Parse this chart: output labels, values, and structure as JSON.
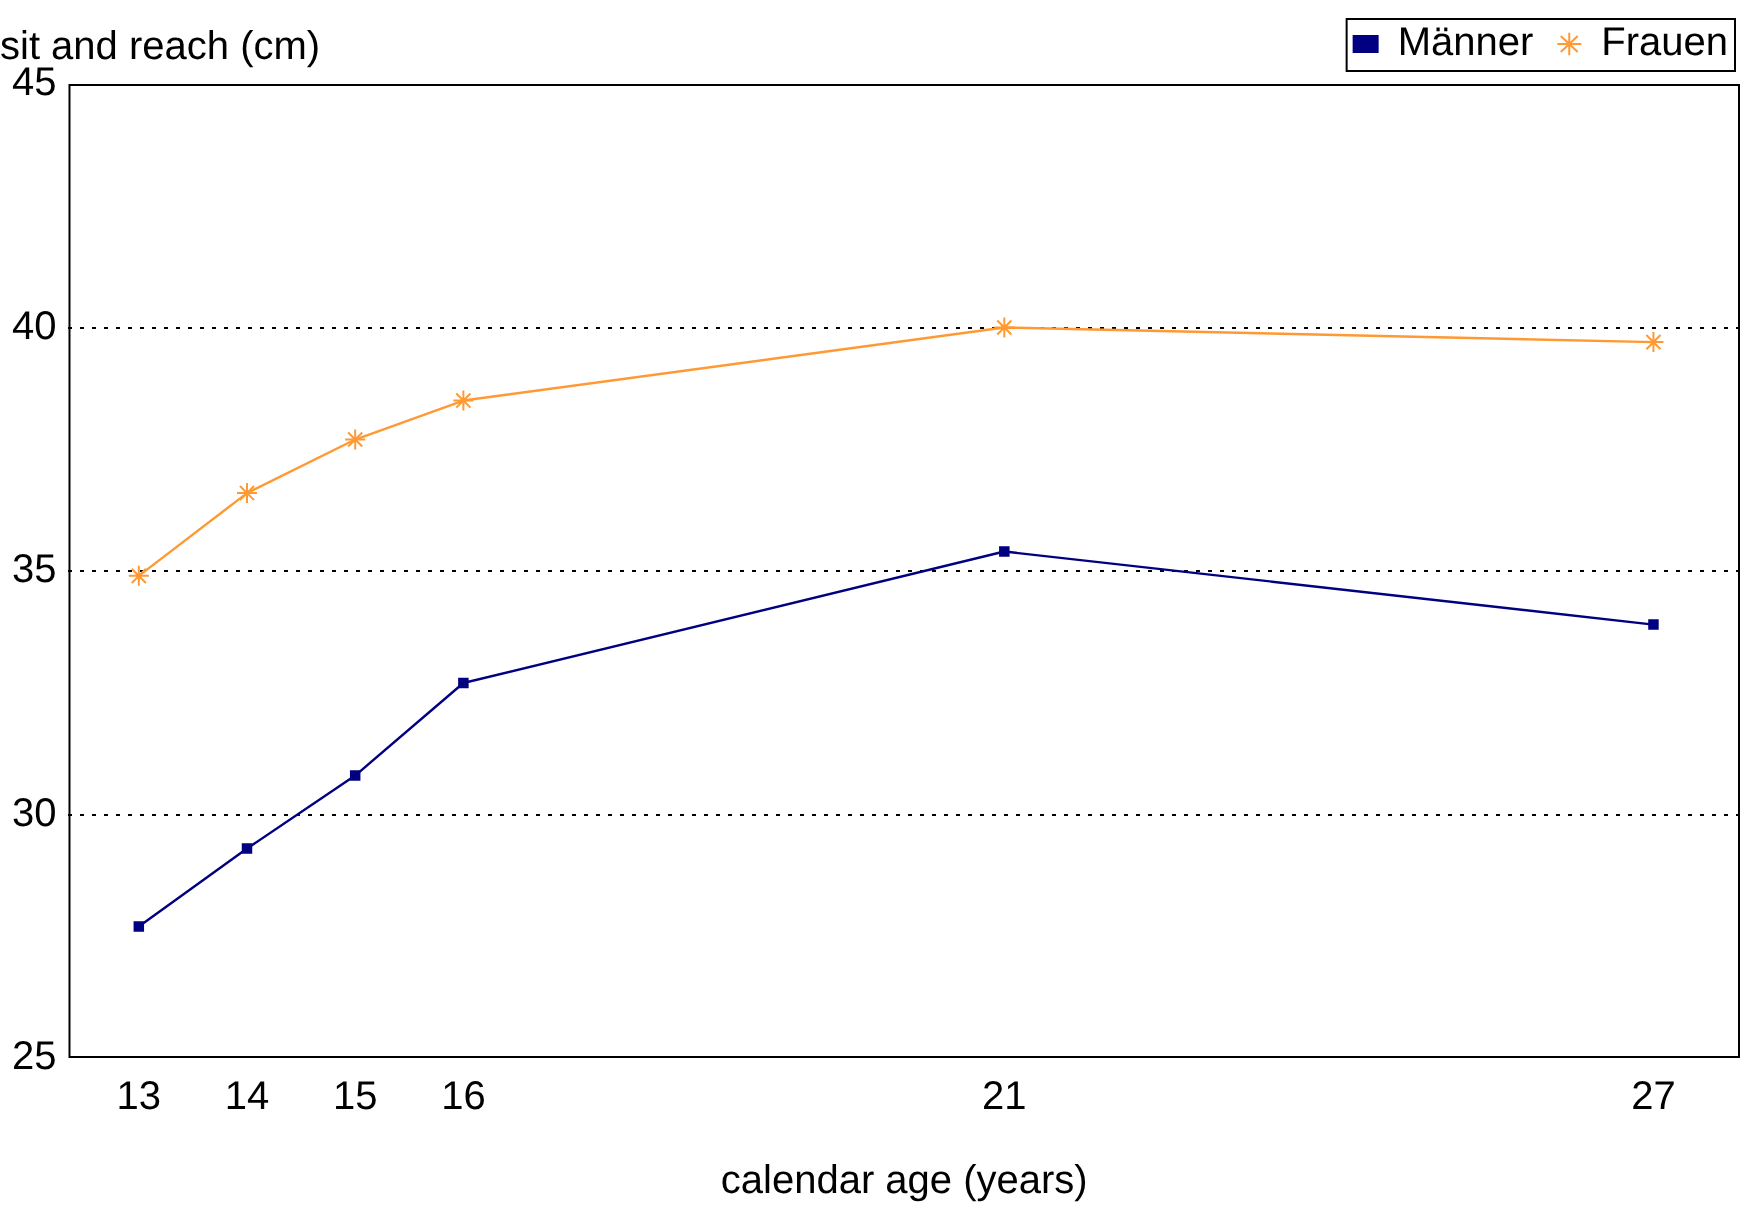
{
  "chart_data": {
    "type": "line",
    "xlabel": "calendar age (years)",
    "ylabel": "sit and reach (cm)",
    "x": [
      13,
      14,
      15,
      16,
      21,
      27
    ],
    "series": [
      {
        "name": "Männer",
        "color": "#000080",
        "marker": "square",
        "values": [
          27.7,
          29.3,
          30.8,
          32.7,
          35.4,
          33.9
        ]
      },
      {
        "name": "Frauen",
        "color": "#ff9933",
        "marker": "cross",
        "values": [
          34.9,
          36.6,
          37.7,
          38.5,
          40.0,
          39.7
        ]
      }
    ],
    "xlim": [
      12.35,
      27.8
    ],
    "xticks": [
      13,
      14,
      15,
      16,
      21,
      27
    ],
    "ylim": [
      25,
      45
    ],
    "yticks": [
      25,
      30,
      35,
      40,
      45
    ],
    "grid": "y",
    "legend": "top right",
    "line_style": "solid"
  }
}
